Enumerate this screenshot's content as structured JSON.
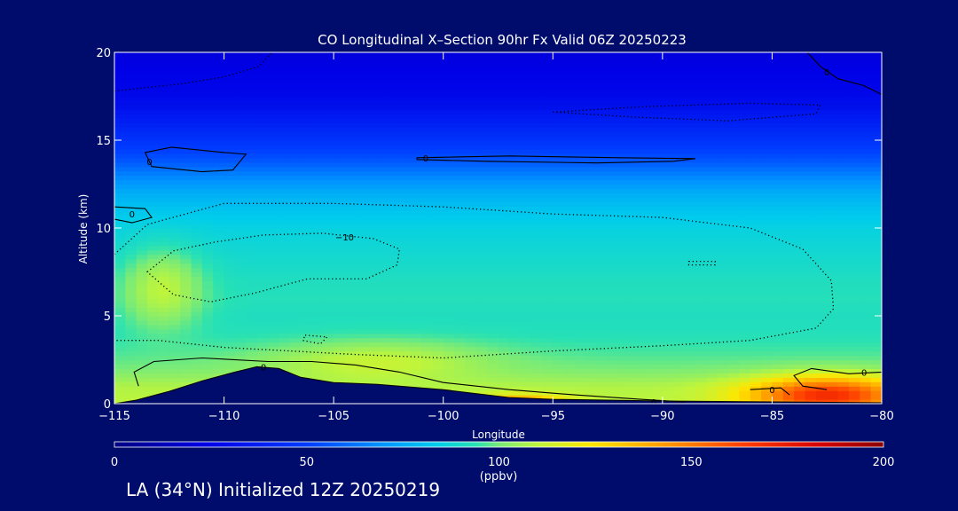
{
  "footer_text": "LA (34°N) Initialized 12Z 20250219",
  "colors": {
    "background": "#000c6b",
    "terrain": "#000c6b",
    "contour": "#000000",
    "text": "#ffffff"
  },
  "chart_data": {
    "type": "heatmap",
    "title": "CO Longitudinal X–Section 90hr  Fx Valid 06Z 20250223",
    "xlabel": "Longitude",
    "ylabel": "Altitude (km)",
    "xlim": [
      -115,
      -80
    ],
    "ylim": [
      0,
      20
    ],
    "x_ticks": [
      -115,
      -110,
      -105,
      -100,
      -95,
      -90,
      -85,
      -80
    ],
    "x_tick_labels": [
      "−115",
      "−110",
      "−105",
      "−100",
      "−95",
      "−90",
      "−85",
      "−80"
    ],
    "y_ticks": [
      0,
      5,
      10,
      15,
      20
    ],
    "y_tick_labels": [
      "0",
      "5",
      "10",
      "15",
      "20"
    ],
    "colorbar": {
      "label": "(ppbv)",
      "range": [
        0,
        200
      ],
      "ticks": [
        0,
        50,
        100,
        150,
        200
      ],
      "tick_labels": [
        "0",
        "50",
        "100",
        "150",
        "200"
      ]
    },
    "vertical_profile_ppbv": [
      {
        "alt": 0,
        "value": 110
      },
      {
        "alt": 1,
        "value": 108
      },
      {
        "alt": 2,
        "value": 100
      },
      {
        "alt": 3,
        "value": 96
      },
      {
        "alt": 4,
        "value": 93
      },
      {
        "alt": 5,
        "value": 92
      },
      {
        "alt": 6,
        "value": 93
      },
      {
        "alt": 7,
        "value": 92
      },
      {
        "alt": 8,
        "value": 90
      },
      {
        "alt": 9,
        "value": 88
      },
      {
        "alt": 10,
        "value": 86
      },
      {
        "alt": 11,
        "value": 82
      },
      {
        "alt": 12,
        "value": 76
      },
      {
        "alt": 13,
        "value": 66
      },
      {
        "alt": 14,
        "value": 54
      },
      {
        "alt": 15,
        "value": 46
      },
      {
        "alt": 16,
        "value": 38
      },
      {
        "alt": 17,
        "value": 30
      },
      {
        "alt": 18,
        "value": 26
      },
      {
        "alt": 19,
        "value": 24
      },
      {
        "alt": 20,
        "value": 22
      }
    ],
    "hotspots_ppbv": [
      {
        "lon": -82.5,
        "alt": 0.5,
        "value": 170,
        "lon_radius": 3.5,
        "alt_radius": 1.0
      },
      {
        "lon": -96.5,
        "alt": 0.1,
        "value": 150,
        "lon_radius": 2.0,
        "alt_radius": 0.4
      },
      {
        "lon": -112.8,
        "alt": 6.5,
        "value": 110,
        "lon_radius": 1.8,
        "alt_radius": 2.2
      },
      {
        "lon": -103,
        "alt": 2.3,
        "value": 112,
        "lon_radius": 5.0,
        "alt_radius": 1.2
      }
    ],
    "terrain_km": [
      {
        "lon": -115,
        "alt": 0.0
      },
      {
        "lon": -114,
        "alt": 0.2
      },
      {
        "lon": -112.5,
        "alt": 0.7
      },
      {
        "lon": -111,
        "alt": 1.3
      },
      {
        "lon": -109.5,
        "alt": 1.8
      },
      {
        "lon": -108.5,
        "alt": 2.1
      },
      {
        "lon": -107.5,
        "alt": 2.0
      },
      {
        "lon": -106.5,
        "alt": 1.5
      },
      {
        "lon": -105,
        "alt": 1.2
      },
      {
        "lon": -103,
        "alt": 1.1
      },
      {
        "lon": -100,
        "alt": 0.8
      },
      {
        "lon": -97,
        "alt": 0.35
      },
      {
        "lon": -95,
        "alt": 0.25
      },
      {
        "lon": -90,
        "alt": 0.15
      },
      {
        "lon": -85,
        "alt": 0.1
      },
      {
        "lon": -80,
        "alt": 0.05
      }
    ],
    "contour_labels": [
      {
        "text": "0",
        "lon": -114.2,
        "alt": 10.8
      },
      {
        "text": "0",
        "lon": -113.4,
        "alt": 13.8
      },
      {
        "text": "0",
        "lon": -100.8,
        "alt": 14.0
      },
      {
        "text": "−10",
        "lon": -104.5,
        "alt": 9.5
      },
      {
        "text": "0",
        "lon": -108.2,
        "alt": 2.1
      },
      {
        "text": "0",
        "lon": -90.4,
        "alt": 0.1
      },
      {
        "text": "0",
        "lon": -85.0,
        "alt": 0.8
      },
      {
        "text": "0",
        "lon": -80.8,
        "alt": 1.8
      },
      {
        "text": "0",
        "lon": -82.5,
        "alt": 18.9
      }
    ]
  }
}
